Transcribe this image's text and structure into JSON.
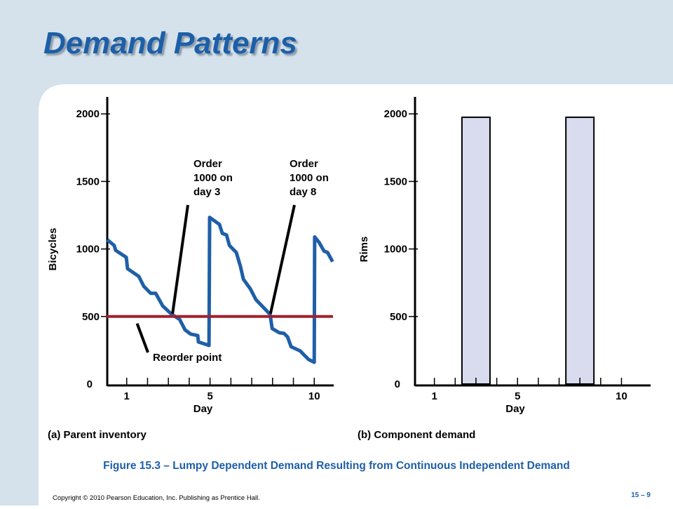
{
  "title": "Demand Patterns",
  "chart_data": [
    {
      "type": "line",
      "caption": "(a) Parent inventory",
      "xlabel": "Day",
      "ylabel": "Bicycles",
      "xlim": [
        0,
        10.9
      ],
      "ylim": [
        0,
        2100
      ],
      "xticks": [
        1,
        5,
        10
      ],
      "minor_xticks": [
        2,
        3,
        4,
        6,
        7,
        8,
        9
      ],
      "yticks": [
        0,
        500,
        1000,
        1500,
        2000
      ],
      "series": [
        {
          "color": "#1f5fa8",
          "x": [
            0.07,
            0.4,
            0.47,
            0.98,
            1.04,
            1.58,
            1.82,
            2.15,
            2.39,
            2.73,
            3.16,
            3.54,
            3.8,
            4.07,
            4.41,
            4.44,
            4.95,
            4.98,
            5.45,
            5.59,
            5.79,
            5.93,
            6.26,
            6.46,
            6.6,
            6.94,
            7.2,
            7.88,
            7.98,
            8.32,
            8.55,
            8.72,
            8.89,
            9.33,
            9.49,
            9.73,
            10.0,
            10.02,
            10.24,
            10.47,
            10.64,
            10.88
          ],
          "values": [
            1068,
            1026,
            990,
            938,
            854,
            797,
            724,
            672,
            672,
            578,
            516,
            479,
            401,
            370,
            359,
            312,
            286,
            1234,
            1182,
            1115,
            1104,
            1026,
            974,
            870,
            776,
            703,
            625,
            516,
            411,
            380,
            375,
            349,
            276,
            245,
            219,
            182,
            161,
            1089,
            1047,
            984,
            974,
            906
          ]
        },
        {
          "color": "#a31f2c",
          "x": [
            0,
            10.9
          ],
          "values": [
            500,
            500
          ]
        }
      ],
      "annotations": [
        {
          "lines": [
            "Order",
            "1000 on",
            "day 3"
          ],
          "x": 3.2,
          "y": 500
        },
        {
          "lines": [
            "Order",
            "1000 on",
            "day 8"
          ],
          "x": 7.9,
          "y": 500
        },
        {
          "lines": [
            "Reorder point"
          ],
          "x": 1.5,
          "y": 500
        }
      ]
    },
    {
      "type": "bar",
      "caption": "(b) Component demand",
      "xlabel": "Day",
      "ylabel": "Rims",
      "xlim": [
        0,
        11.4
      ],
      "ylim": [
        0,
        2100
      ],
      "xticks": [
        1,
        5,
        10
      ],
      "minor_xticks": [
        2,
        3,
        4,
        6,
        7,
        8,
        9
      ],
      "yticks": [
        0,
        500,
        1000,
        1500,
        2000
      ],
      "color": "#d9dcee",
      "x": [
        3,
        8
      ],
      "values": [
        1975,
        1975
      ]
    }
  ],
  "figure_caption": "Figure 15.3 – Lumpy Dependent Demand Resulting from Continuous Independent Demand",
  "footer": {
    "copyright": "Copyright © 2010 Pearson Education, Inc. Publishing as Prentice Hall.",
    "page": "15 – 9"
  }
}
